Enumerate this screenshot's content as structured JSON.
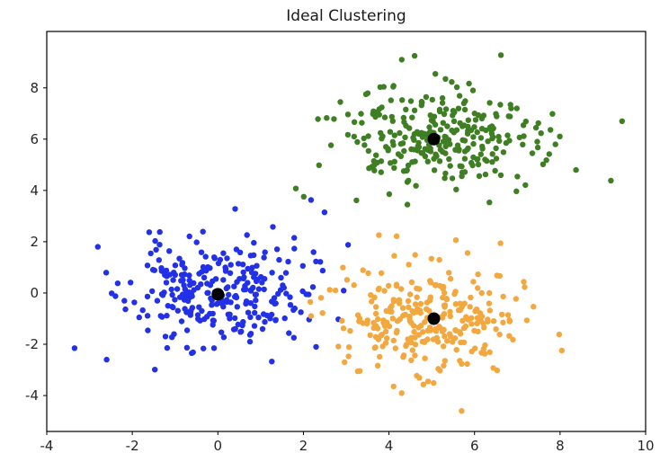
{
  "chart_data": {
    "type": "scatter",
    "title": "Ideal Clustering",
    "xlabel": "",
    "ylabel": "",
    "xlim": [
      -4,
      10
    ],
    "ylim": [
      -5.4,
      10.2
    ],
    "xticks": [
      -4,
      -2,
      0,
      2,
      4,
      6,
      8,
      10
    ],
    "yticks": [
      -4,
      -2,
      0,
      2,
      4,
      6,
      8
    ],
    "grid": false,
    "legend_position": "none",
    "series": [
      {
        "name": "blue-cluster",
        "color": "#2231e8",
        "center": [
          0.0,
          0.0
        ],
        "std": [
          1.05,
          1.05
        ],
        "n": 280,
        "seed": 11,
        "marker_radius": 3.2,
        "extra_points": [
          [
            -3.35,
            -2.15
          ],
          [
            -2.6,
            -2.6
          ]
        ]
      },
      {
        "name": "green-cluster",
        "color": "#3f7f23",
        "center": [
          5.1,
          6.0
        ],
        "std": [
          1.2,
          1.0
        ],
        "n": 280,
        "seed": 23,
        "marker_radius": 3.2,
        "extra_points": [
          [
            9.45,
            6.7
          ],
          [
            4.3,
            9.1
          ],
          [
            4.6,
            9.25
          ]
        ]
      },
      {
        "name": "orange-cluster",
        "color": "#f3a83f",
        "center": [
          5.0,
          -1.0
        ],
        "std": [
          1.05,
          1.05
        ],
        "n": 280,
        "seed": 37,
        "marker_radius": 3.2,
        "extra_points": [
          [
            5.7,
            -4.6
          ],
          [
            2.75,
            0.1
          ]
        ]
      }
    ],
    "centroids": {
      "color": "#000000",
      "marker_radius": 7,
      "points": [
        [
          0.0,
          -0.05
        ],
        [
          5.05,
          6.0
        ],
        [
          5.05,
          -1.0
        ]
      ]
    }
  }
}
